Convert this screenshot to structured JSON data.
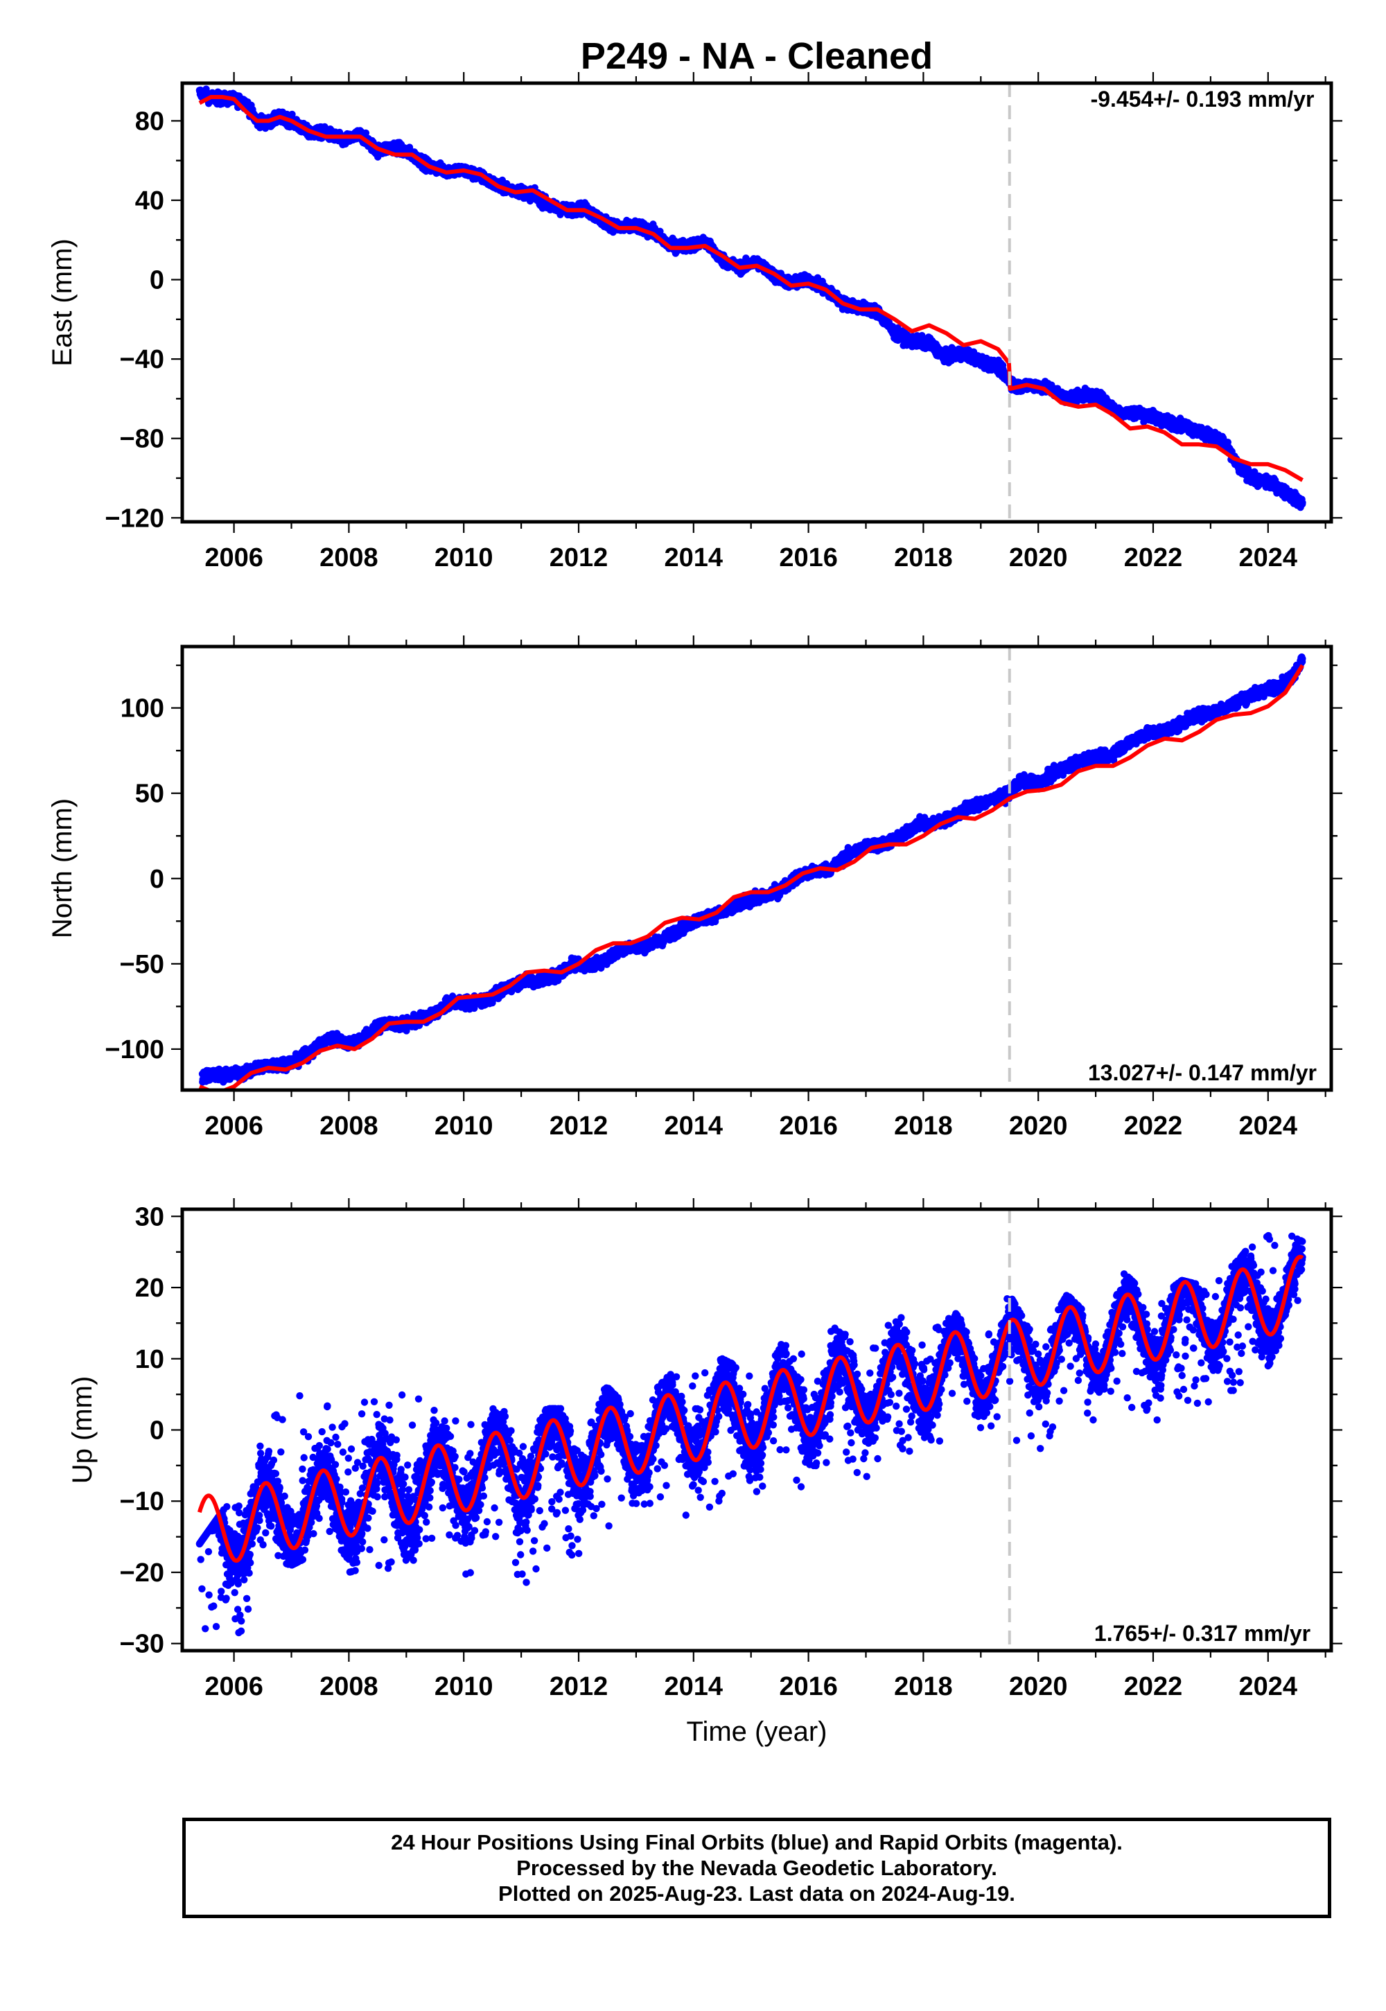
{
  "title": "P249  - NA - Cleaned",
  "x_axis_label": "Time (year)",
  "colors": {
    "data": "#0000ff",
    "model": "#ff0000",
    "offset_line": "#c8c8c8"
  },
  "footer": {
    "line1": "24 Hour Positions Using Final Orbits (blue) and Rapid Orbits (magenta).",
    "line2": "Processed by the Nevada Geodetic Laboratory.",
    "line3": "Plotted on 2025-Aug-23. Last data on 2024-Aug-19."
  },
  "chart_data": [
    {
      "type": "scatter",
      "ylabel": "East (mm)",
      "rate_label": "-9.454+/- 0.193 mm/yr",
      "rate_position": "top-right",
      "xlim": [
        2005.1,
        2025.1
      ],
      "ylim": [
        -122,
        99
      ],
      "xticks": [
        2006,
        2008,
        2010,
        2012,
        2014,
        2016,
        2018,
        2020,
        2022,
        2024
      ],
      "yticks": [
        80,
        40,
        0,
        -40,
        -80,
        -120
      ],
      "offset_epoch": 2019.5,
      "grid": false,
      "series": [
        {
          "kind": "observations",
          "x": [
            2005.4,
            2005.6,
            2005.8,
            2006.0,
            2006.2,
            2006.4,
            2006.6,
            2006.8,
            2007.0,
            2007.3,
            2007.6,
            2007.9,
            2008.2,
            2008.5,
            2008.8,
            2009.1,
            2009.4,
            2009.7,
            2010.0,
            2010.3,
            2010.6,
            2010.9,
            2011.2,
            2011.5,
            2011.8,
            2012.1,
            2012.4,
            2012.7,
            2013.0,
            2013.3,
            2013.6,
            2013.9,
            2014.2,
            2014.5,
            2014.8,
            2015.1,
            2015.4,
            2015.7,
            2016.0,
            2016.3,
            2016.6,
            2016.9,
            2017.2,
            2017.5,
            2017.8,
            2018.1,
            2018.4,
            2018.7,
            2019.0,
            2019.3,
            2019.6,
            2019.9,
            2020.2,
            2020.5,
            2020.8,
            2021.1,
            2021.4,
            2021.7,
            2022.0,
            2022.3,
            2022.6,
            2022.9,
            2023.2,
            2023.5,
            2023.8,
            2024.1,
            2024.4,
            2024.6
          ],
          "y": [
            94,
            92,
            91,
            91,
            89,
            80,
            79,
            82,
            80,
            74,
            74,
            70,
            73,
            65,
            67,
            63,
            57,
            55,
            55,
            52,
            47,
            45,
            43,
            37,
            35,
            36,
            30,
            26,
            27,
            24,
            17,
            17,
            19,
            10,
            6,
            9,
            2,
            -2,
            0,
            -5,
            -12,
            -14,
            -16,
            -27,
            -31,
            -32,
            -39,
            -37,
            -41,
            -44,
            -54,
            -53,
            -55,
            -60,
            -58,
            -60,
            -67,
            -67,
            -69,
            -72,
            -74,
            -78,
            -81,
            -95,
            -101,
            -103,
            -109,
            -113
          ]
        },
        {
          "kind": "model",
          "x": [
            2005.4,
            2005.6,
            2005.8,
            2006.0,
            2006.2,
            2006.4,
            2006.6,
            2006.8,
            2007.0,
            2007.3,
            2007.6,
            2007.9,
            2008.2,
            2008.5,
            2008.8,
            2009.1,
            2009.4,
            2009.7,
            2010.0,
            2010.3,
            2010.6,
            2010.9,
            2011.2,
            2011.5,
            2011.8,
            2012.1,
            2012.4,
            2012.7,
            2013.0,
            2013.3,
            2013.6,
            2013.9,
            2014.2,
            2014.5,
            2014.8,
            2015.1,
            2015.4,
            2015.7,
            2016.0,
            2016.3,
            2016.6,
            2016.9,
            2017.2,
            2017.5,
            2017.8,
            2018.1,
            2018.4,
            2018.7,
            2019.0,
            2019.3,
            2019.49,
            2019.51,
            2019.8,
            2020.1,
            2020.4,
            2020.7,
            2021.0,
            2021.3,
            2021.6,
            2021.9,
            2022.2,
            2022.5,
            2022.8,
            2023.1,
            2023.4,
            2023.7,
            2024.0,
            2024.3,
            2024.6
          ],
          "y": [
            89,
            92,
            92,
            91,
            85,
            80,
            80,
            82,
            80,
            75,
            72,
            72,
            72,
            66,
            63,
            63,
            57,
            54,
            55,
            53,
            47,
            44,
            45,
            40,
            35,
            35,
            31,
            26,
            26,
            23,
            16,
            16,
            17,
            12,
            6,
            7,
            3,
            -3,
            -2,
            -5,
            -12,
            -15,
            -15,
            -20,
            -26,
            -23,
            -27,
            -33,
            -31,
            -35,
            -42,
            -55,
            -53,
            -55,
            -62,
            -64,
            -63,
            -68,
            -75,
            -74,
            -77,
            -83,
            -83,
            -84,
            -90,
            -93,
            -93,
            -96,
            -101
          ]
        }
      ]
    },
    {
      "type": "scatter",
      "ylabel": "North (mm)",
      "rate_label": "13.027+/- 0.147 mm/yr",
      "rate_position": "bottom-right",
      "xlim": [
        2005.1,
        2025.1
      ],
      "ylim": [
        -124,
        136
      ],
      "xticks": [
        2006,
        2008,
        2010,
        2012,
        2014,
        2016,
        2018,
        2020,
        2022,
        2024
      ],
      "yticks": [
        100,
        50,
        0,
        -50,
        -100
      ],
      "offset_epoch": 2019.5,
      "grid": false,
      "series": [
        {
          "kind": "observations",
          "x": [
            2005.45,
            2006.2,
            2006.5,
            2006.8,
            2007.1,
            2007.4,
            2007.7,
            2008.0,
            2008.3,
            2008.6,
            2008.9,
            2009.2,
            2009.5,
            2009.8,
            2010.1,
            2010.4,
            2010.7,
            2011.0,
            2011.3,
            2011.6,
            2011.9,
            2012.2,
            2012.5,
            2012.8,
            2013.1,
            2013.4,
            2013.7,
            2014.0,
            2014.3,
            2014.6,
            2014.9,
            2015.2,
            2015.5,
            2015.8,
            2016.1,
            2016.4,
            2016.7,
            2017.0,
            2017.3,
            2017.6,
            2017.9,
            2018.2,
            2018.5,
            2018.8,
            2019.1,
            2019.4,
            2019.7,
            2020.0,
            2020.3,
            2020.6,
            2020.9,
            2021.2,
            2021.5,
            2021.8,
            2022.1,
            2022.4,
            2022.7,
            2023.0,
            2023.3,
            2023.6,
            2023.9,
            2024.2,
            2024.4,
            2024.6
          ],
          "y": [
            -116,
            -114,
            -110,
            -109,
            -107,
            -100,
            -93,
            -97,
            -92,
            -85,
            -86,
            -83,
            -79,
            -72,
            -73,
            -71,
            -65,
            -60,
            -60,
            -57,
            -50,
            -51,
            -47,
            -40,
            -40,
            -37,
            -31,
            -25,
            -22,
            -19,
            -13,
            -11,
            -7,
            1,
            4,
            6,
            14,
            19,
            20,
            24,
            32,
            32,
            36,
            42,
            45,
            48,
            57,
            56,
            62,
            67,
            71,
            71,
            78,
            84,
            86,
            89,
            95,
            97,
            101,
            106,
            110,
            113,
            118,
            128
          ]
        },
        {
          "kind": "model",
          "x": [
            2005.4,
            2005.7,
            2006.0,
            2006.3,
            2006.6,
            2006.9,
            2007.2,
            2007.5,
            2007.8,
            2008.1,
            2008.4,
            2008.7,
            2009.0,
            2009.3,
            2009.6,
            2009.9,
            2010.2,
            2010.5,
            2010.8,
            2011.1,
            2011.4,
            2011.7,
            2012.0,
            2012.3,
            2012.6,
            2012.9,
            2013.2,
            2013.5,
            2013.8,
            2014.1,
            2014.4,
            2014.7,
            2015.0,
            2015.3,
            2015.6,
            2015.9,
            2016.2,
            2016.5,
            2016.8,
            2017.1,
            2017.4,
            2017.7,
            2018.0,
            2018.3,
            2018.6,
            2018.9,
            2019.2,
            2019.5,
            2019.8,
            2020.1,
            2020.4,
            2020.7,
            2021.0,
            2021.3,
            2021.6,
            2021.9,
            2022.2,
            2022.5,
            2022.8,
            2023.1,
            2023.4,
            2023.7,
            2024.0,
            2024.3,
            2024.6
          ],
          "y": [
            -122,
            -126,
            -122,
            -114,
            -111,
            -112,
            -108,
            -101,
            -98,
            -100,
            -94,
            -85,
            -84,
            -84,
            -79,
            -70,
            -69,
            -68,
            -63,
            -55,
            -54,
            -55,
            -50,
            -42,
            -38,
            -38,
            -34,
            -26,
            -23,
            -24,
            -20,
            -11,
            -8,
            -8,
            -4,
            3,
            6,
            5,
            10,
            18,
            20,
            20,
            25,
            32,
            36,
            35,
            40,
            47,
            51,
            52,
            55,
            63,
            66,
            66,
            71,
            78,
            82,
            81,
            86,
            93,
            96,
            97,
            101,
            109,
            125
          ]
        }
      ]
    },
    {
      "type": "scatter",
      "ylabel": "Up (mm)",
      "rate_label": "1.765+/- 0.317 mm/yr",
      "rate_position": "bottom-right",
      "xlim": [
        2005.1,
        2025.1
      ],
      "ylim": [
        -31,
        31
      ],
      "xticks": [
        2006,
        2008,
        2010,
        2012,
        2014,
        2016,
        2018,
        2020,
        2022,
        2024
      ],
      "yticks": [
        30,
        20,
        10,
        0,
        -10,
        -20,
        -30
      ],
      "offset_epoch": 2019.5,
      "grid": false,
      "series": [
        {
          "kind": "model_seasonal",
          "params": {
            "t0": 2005.4,
            "mean0": -14.5,
            "trend": 1.765,
            "amplitude": 5.0,
            "peak_phase": 0.55
          }
        },
        {
          "kind": "observations_envelope",
          "x": [
            2005.4,
            2006.1,
            2006.6,
            2007.0,
            2007.5,
            2008.0,
            2008.5,
            2009.0,
            2009.5,
            2010.0,
            2010.5,
            2011.0,
            2011.5,
            2012.0,
            2012.5,
            2013.0,
            2013.5,
            2014.0,
            2014.5,
            2015.0,
            2015.5,
            2016.0,
            2016.5,
            2017.0,
            2017.5,
            2018.0,
            2018.5,
            2019.0,
            2019.5,
            2020.0,
            2020.5,
            2021.0,
            2021.5,
            2022.0,
            2022.5,
            2023.0,
            2023.5,
            2024.0,
            2024.6
          ],
          "y_low": [
            -28,
            -29,
            -18,
            -19,
            -17,
            -20,
            -19,
            -21,
            -18,
            -22,
            -16,
            -23,
            -17,
            -18,
            -14,
            -17,
            -12,
            -12,
            -10,
            -13,
            -7,
            -9,
            -5,
            -7,
            -2,
            -5,
            0,
            -3,
            -1,
            -3,
            2,
            -1,
            4,
            -1,
            4,
            3,
            6,
            9,
            14
          ],
          "y_high": [
            -16,
            -8,
            3,
            6,
            4,
            4,
            5,
            5,
            5,
            2,
            3,
            2,
            3,
            3,
            6,
            2,
            8,
            8,
            10,
            8,
            12,
            12,
            16,
            11,
            16,
            15,
            17,
            12,
            19,
            12,
            19,
            15,
            22,
            18,
            21,
            20,
            24,
            29,
            27
          ]
        }
      ]
    }
  ]
}
